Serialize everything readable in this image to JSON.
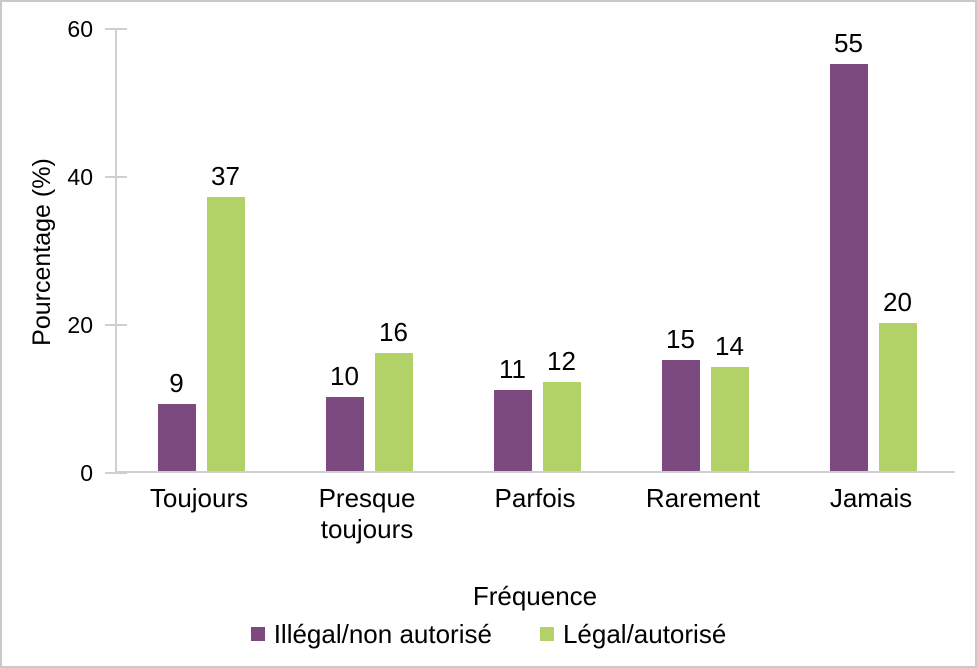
{
  "figure": {
    "background_color": "#FFFFFF",
    "border_color": "#C9C9C9",
    "axis_line_color": "#CFCFCF"
  },
  "chart_data": {
    "type": "bar",
    "title": "",
    "xlabel": "Fréquence",
    "ylabel": "Pourcentage (%)",
    "ylim": [
      0,
      60
    ],
    "yticks": [
      0,
      20,
      40,
      60
    ],
    "grid": false,
    "legend_position": "bottom",
    "data_labels": true,
    "categories": [
      "Toujours",
      "Presque\ntoujours",
      "Parfois",
      "Rarement",
      "Jamais"
    ],
    "series": [
      {
        "name": "Illégal/non autorisé",
        "color": "#7D4A80",
        "values": [
          9,
          10,
          11,
          15,
          55
        ]
      },
      {
        "name": "Légal/autorisé",
        "color": "#B2D166",
        "values": [
          37,
          16,
          12,
          14,
          20
        ]
      }
    ]
  }
}
